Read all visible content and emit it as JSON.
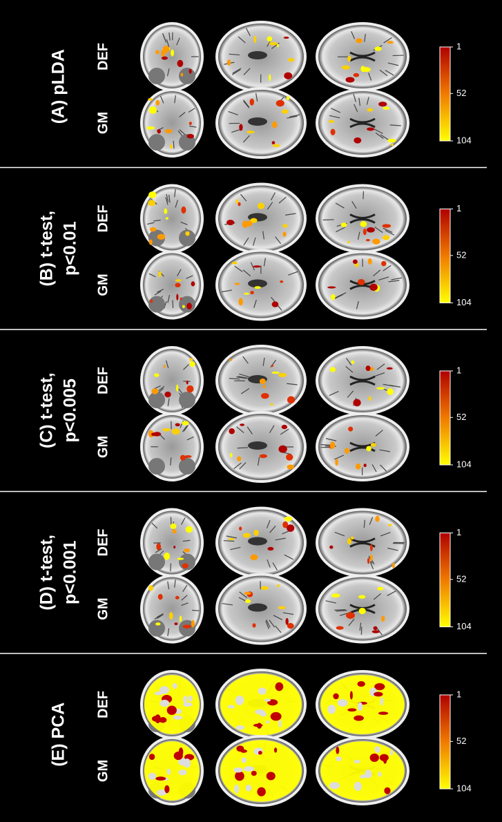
{
  "panels": [
    {
      "label": [
        "(A) pLDA"
      ],
      "rows": [
        "DEF",
        "GM"
      ],
      "colorbar_ticks": [
        1,
        52,
        104
      ]
    },
    {
      "label": [
        "(B) t-test,",
        "p<0.01"
      ],
      "rows": [
        "DEF",
        "GM"
      ],
      "colorbar_ticks": [
        1,
        52,
        104
      ]
    },
    {
      "label": [
        "(C) t-test,",
        "p<0.005"
      ],
      "rows": [
        "DEF",
        "GM"
      ],
      "colorbar_ticks": [
        1,
        52,
        104
      ]
    },
    {
      "label": [
        "(D) t-test,",
        "p<0.001"
      ],
      "rows": [
        "DEF",
        "GM"
      ],
      "colorbar_ticks": [
        1,
        52,
        104
      ]
    },
    {
      "label": [
        "(E) PCA"
      ],
      "rows": [
        "DEF",
        "GM"
      ],
      "colorbar_ticks": [
        1,
        52,
        104
      ]
    }
  ]
}
